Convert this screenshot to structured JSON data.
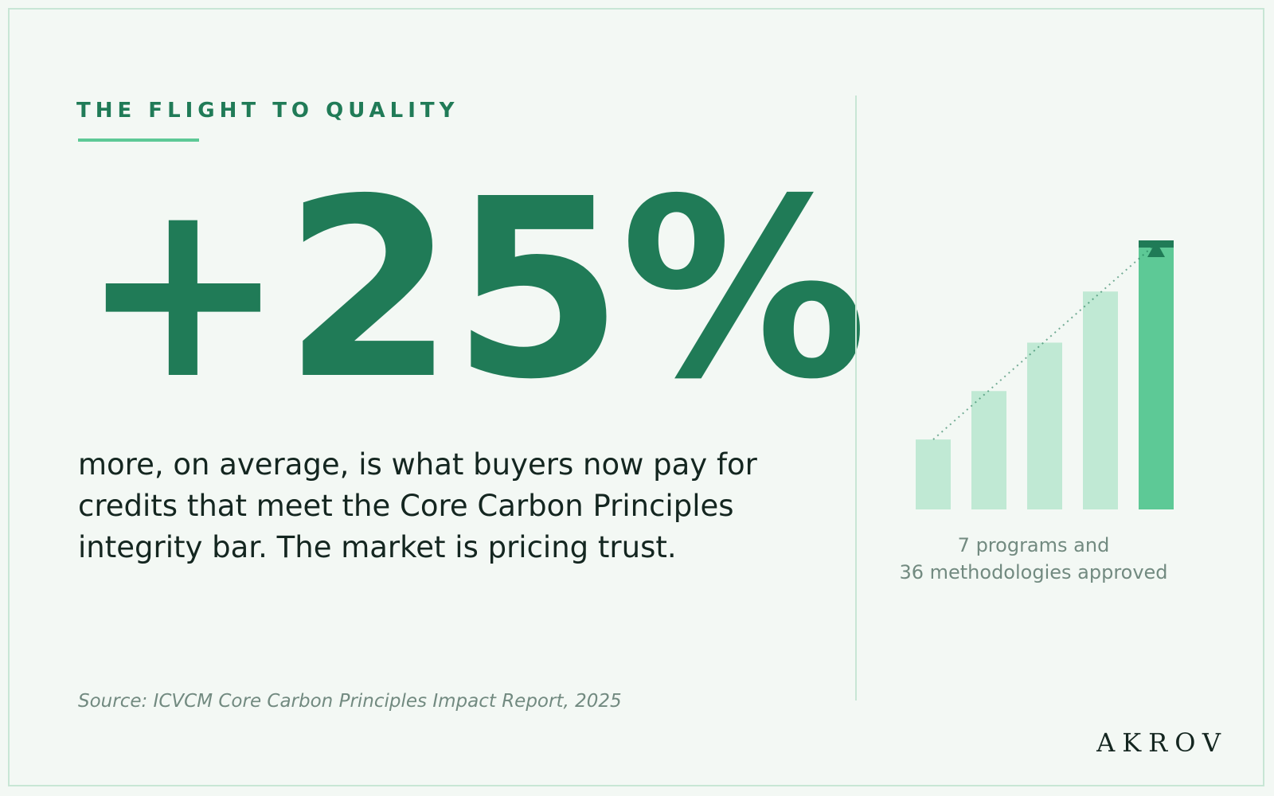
{
  "eyebrow": "THE FLIGHT TO QUALITY",
  "stat": "+25%",
  "body": "more, on average, is what buyers now pay for credits that meet the Core Carbon Principles integrity bar. The market is pricing trust.",
  "source": "Source: ICVCM Core Carbon Principles Impact Report, 2025",
  "caption": {
    "line1": "7 programs and",
    "line2": "36 methodologies approved"
  },
  "logo": "AKROV",
  "colors": {
    "accent": "#207b57",
    "bar_light": "#c0e9d4",
    "bar_highlight": "#5dc996",
    "text": "#142620",
    "muted": "#728a80",
    "background": "#f3f8f4"
  },
  "chart_data": {
    "type": "bar",
    "values": [
      26,
      44,
      62,
      81,
      100
    ],
    "highlight_index": 4,
    "trend_line": "dotted",
    "marker": "up-arrow",
    "title": "",
    "xlabel": "",
    "ylabel": ""
  }
}
